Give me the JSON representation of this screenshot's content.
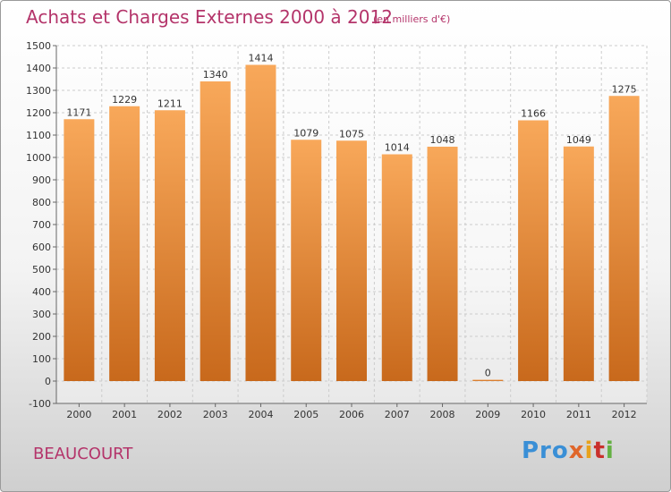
{
  "header": {
    "title": "Achats et Charges Externes 2000 à 2012",
    "unit": "(en milliers d'€)"
  },
  "footer": {
    "city": "BEAUCOURT",
    "brand": [
      "Pro",
      "x",
      "i",
      "t",
      "i"
    ]
  },
  "colors": {
    "title": "#b4346a",
    "bar_top": "#f8a85a",
    "bar_bottom": "#c8691c",
    "grid": "#cccccc"
  },
  "chart_data": {
    "type": "bar",
    "title": "Achats et Charges Externes 2000 à 2012",
    "subtitle": "(en milliers d'€)",
    "categories": [
      "2000",
      "2001",
      "2002",
      "2003",
      "2004",
      "2005",
      "2006",
      "2007",
      "2008",
      "2009",
      "2010",
      "2011",
      "2012"
    ],
    "values": [
      1171,
      1229,
      1211,
      1340,
      1414,
      1079,
      1075,
      1014,
      1048,
      0,
      1166,
      1049,
      1275
    ],
    "ylim": [
      -100,
      1500
    ],
    "yticks": [
      -100,
      0,
      100,
      200,
      300,
      400,
      500,
      600,
      700,
      800,
      900,
      1000,
      1100,
      1200,
      1300,
      1400,
      1500
    ],
    "grid": true,
    "legend": "none"
  }
}
